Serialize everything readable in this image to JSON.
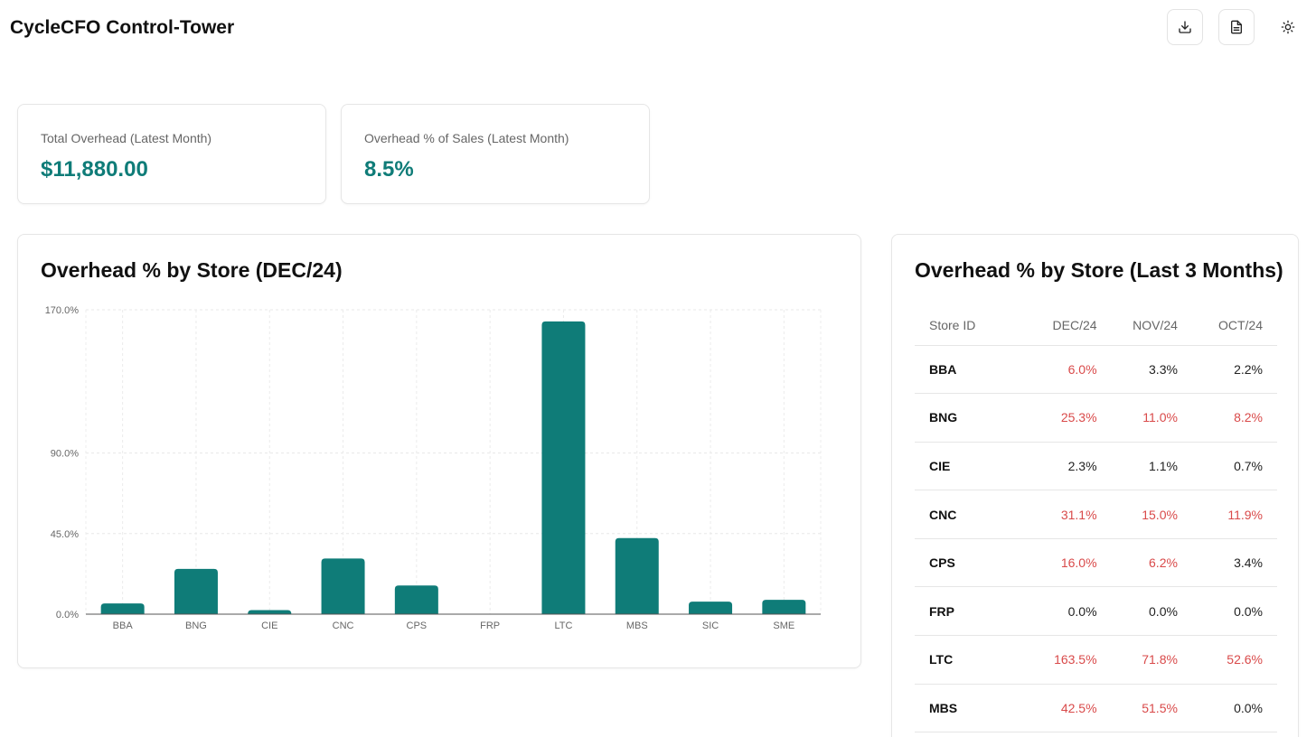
{
  "header": {
    "title": "CycleCFO Control-Tower",
    "buttons": [
      {
        "name": "download-button",
        "icon": "download-icon"
      },
      {
        "name": "report-button",
        "icon": "file-text-icon"
      },
      {
        "name": "theme-toggle",
        "icon": "sun-icon"
      }
    ]
  },
  "kpis": {
    "total_overhead": {
      "label": "Total Overhead (Latest Month)",
      "value": "$11,880.00"
    },
    "overhead_pct": {
      "label": "Overhead % of Sales (Latest Month)",
      "value": "8.5%"
    }
  },
  "colors": {
    "accent": "#0f7c78",
    "bad": "#d94a4a"
  },
  "chart": {
    "title": "Overhead % by Store (DEC/24)"
  },
  "chart_data": {
    "type": "bar",
    "categories": [
      "BBA",
      "BNG",
      "CIE",
      "CNC",
      "CPS",
      "FRP",
      "LTC",
      "MBS",
      "SIC",
      "SME"
    ],
    "values": [
      6.0,
      25.3,
      2.3,
      31.1,
      16.0,
      0.0,
      163.5,
      42.5,
      7.0,
      8.0
    ],
    "y_ticks": [
      "0.0%",
      "45.0%",
      "90.0%",
      "170.0%"
    ],
    "y_tick_values": [
      0,
      45,
      90,
      170
    ],
    "ylim": [
      0,
      170
    ],
    "grid": true,
    "color": "#0f7c78"
  },
  "table": {
    "title": "Overhead % by Store (Last 3 Months)",
    "columns": [
      "Store ID",
      "DEC/24",
      "NOV/24",
      "OCT/24"
    ],
    "rows": [
      {
        "store": "BBA",
        "values": [
          "6.0%",
          "3.3%",
          "2.2%"
        ],
        "flags": [
          true,
          false,
          false
        ]
      },
      {
        "store": "BNG",
        "values": [
          "25.3%",
          "11.0%",
          "8.2%"
        ],
        "flags": [
          true,
          true,
          true
        ]
      },
      {
        "store": "CIE",
        "values": [
          "2.3%",
          "1.1%",
          "0.7%"
        ],
        "flags": [
          false,
          false,
          false
        ]
      },
      {
        "store": "CNC",
        "values": [
          "31.1%",
          "15.0%",
          "11.9%"
        ],
        "flags": [
          true,
          true,
          true
        ]
      },
      {
        "store": "CPS",
        "values": [
          "16.0%",
          "6.2%",
          "3.4%"
        ],
        "flags": [
          true,
          true,
          false
        ]
      },
      {
        "store": "FRP",
        "values": [
          "0.0%",
          "0.0%",
          "0.0%"
        ],
        "flags": [
          false,
          false,
          false
        ]
      },
      {
        "store": "LTC",
        "values": [
          "163.5%",
          "71.8%",
          "52.6%"
        ],
        "flags": [
          true,
          true,
          true
        ]
      },
      {
        "store": "MBS",
        "values": [
          "42.5%",
          "51.5%",
          "0.0%"
        ],
        "flags": [
          true,
          true,
          false
        ]
      }
    ]
  }
}
